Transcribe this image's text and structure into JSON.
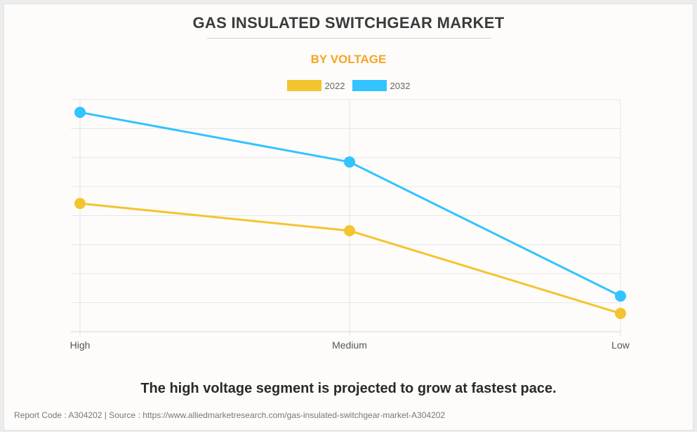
{
  "header": {
    "title": "GAS INSULATED SWITCHGEAR MARKET",
    "subtitle": "BY VOLTAGE",
    "subtitle_color": "#f5a623"
  },
  "legend": [
    {
      "label": "2022",
      "color": "#f4c430"
    },
    {
      "label": "2032",
      "color": "#33c3ff"
    }
  ],
  "chart_data": {
    "type": "line",
    "title": "GAS INSULATED SWITCHGEAR MARKET",
    "subtitle": "BY VOLTAGE",
    "categories": [
      "High",
      "Medium",
      "Low"
    ],
    "series": [
      {
        "name": "2022",
        "color": "#f4c430",
        "values": [
          4.42,
          3.48,
          0.63
        ]
      },
      {
        "name": "2032",
        "color": "#33c3ff",
        "values": [
          7.56,
          5.85,
          1.23
        ]
      }
    ],
    "xlabel": "",
    "ylabel": "",
    "ylim": [
      0,
      8
    ],
    "y_ticks_shown": false,
    "grid": true,
    "legend_position": "top-center",
    "units_note": "relative units (no y-axis values shown)"
  },
  "caption": "The high voltage segment is projected to grow at fastest pace.",
  "footer": "Report Code : A304202  |  Source : https://www.alliedmarketresearch.com/gas-insulated-switchgear-market-A304202"
}
